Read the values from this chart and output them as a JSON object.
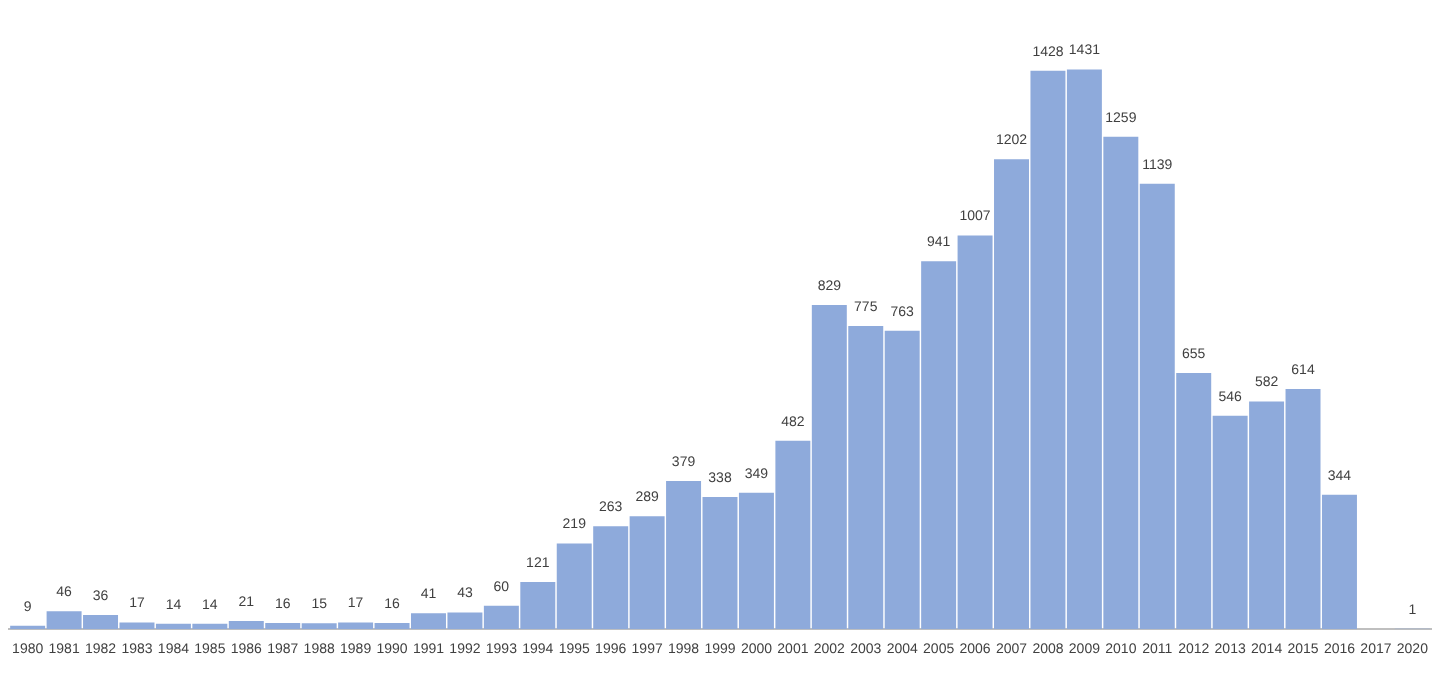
{
  "chart_data": {
    "type": "bar",
    "categories": [
      "1980",
      "1981",
      "1982",
      "1983",
      "1984",
      "1985",
      "1986",
      "1987",
      "1988",
      "1989",
      "1990",
      "1991",
      "1992",
      "1993",
      "1994",
      "1995",
      "1996",
      "1997",
      "1998",
      "1999",
      "2000",
      "2001",
      "2002",
      "2003",
      "2004",
      "2005",
      "2006",
      "2007",
      "2008",
      "2009",
      "2010",
      "2011",
      "2012",
      "2013",
      "2014",
      "2015",
      "2016",
      "2017",
      "2020"
    ],
    "values": [
      9,
      46,
      36,
      17,
      14,
      14,
      21,
      16,
      15,
      17,
      16,
      41,
      43,
      60,
      121,
      219,
      263,
      289,
      379,
      338,
      349,
      482,
      829,
      775,
      763,
      941,
      1007,
      1202,
      1428,
      1431,
      1259,
      1139,
      655,
      546,
      582,
      614,
      344,
      null,
      1
    ],
    "color": "#8eaadb",
    "data_labels": true,
    "grid": false,
    "legend": false,
    "tick_labels": "x"
  }
}
